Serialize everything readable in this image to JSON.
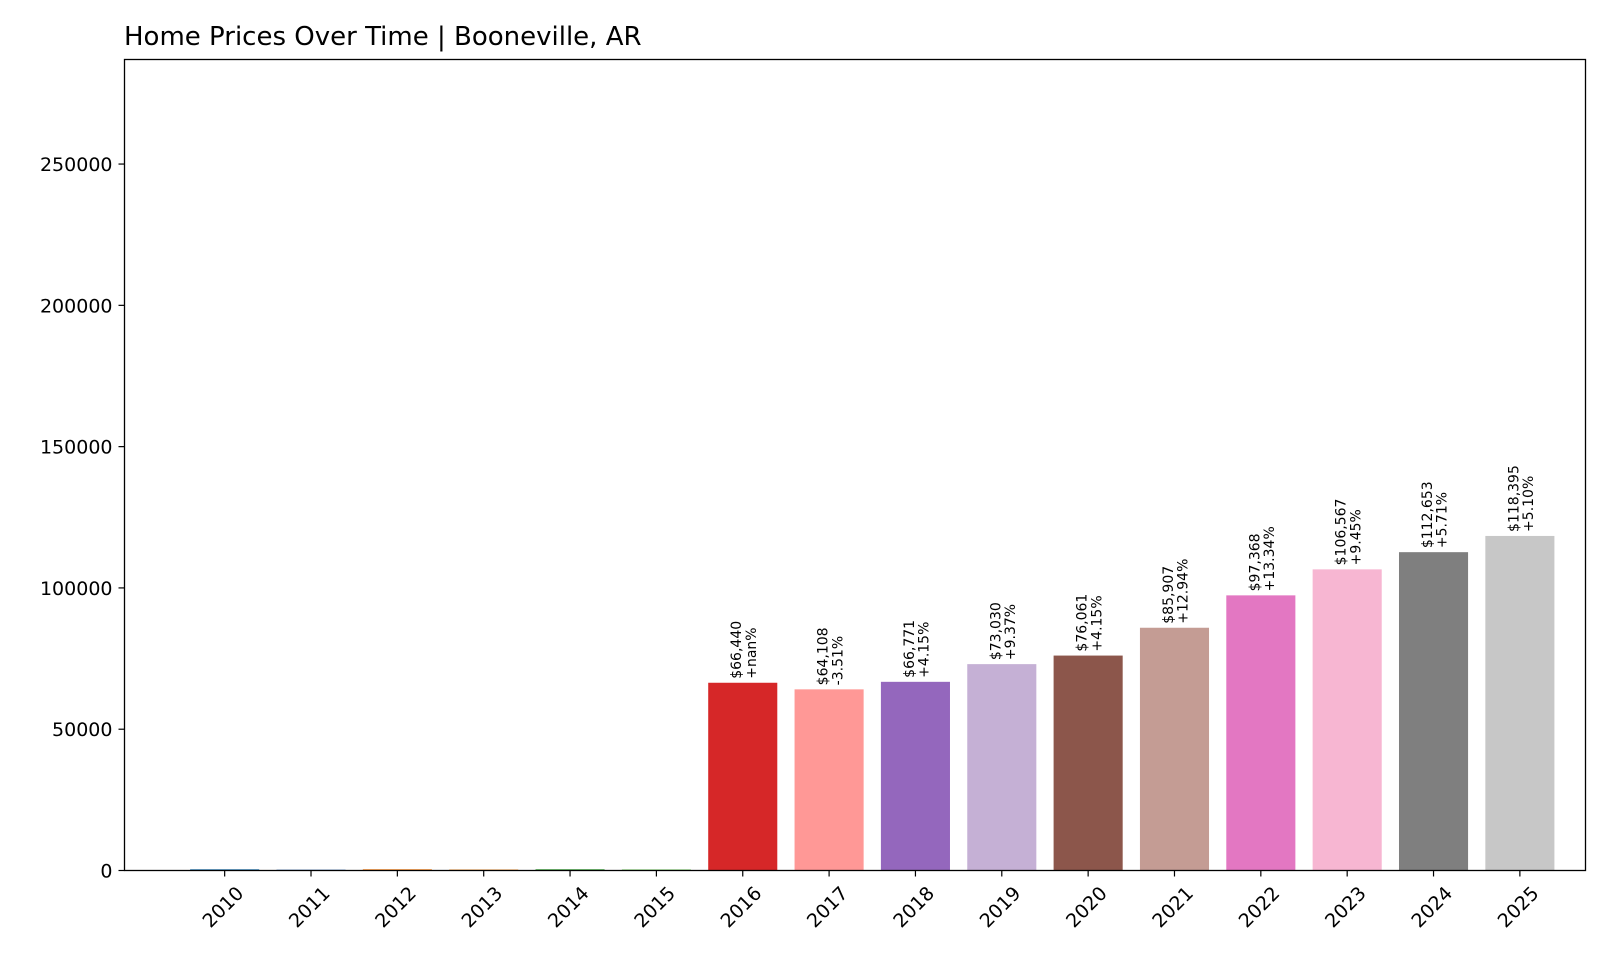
{
  "chart_data": {
    "type": "bar",
    "title": "Home Prices Over Time | Booneville, AR",
    "xlabel": "",
    "ylabel": "",
    "ylim": [
      0,
      287000
    ],
    "yticks": [
      0,
      50000,
      100000,
      150000,
      200000,
      250000
    ],
    "ytick_labels": [
      "0",
      "50000",
      "100000",
      "150000",
      "200000",
      "250000"
    ],
    "categories": [
      "2010",
      "2011",
      "2012",
      "2013",
      "2014",
      "2015",
      "2016",
      "2017",
      "2018",
      "2019",
      "2020",
      "2021",
      "2022",
      "2023",
      "2024",
      "2025"
    ],
    "values": [
      0,
      0,
      0,
      0,
      0,
      0,
      66440,
      64108,
      66771,
      73030,
      76061,
      85907,
      97368,
      106567,
      112653,
      118395
    ],
    "value_labels": [
      "",
      "",
      "",
      "",
      "",
      "",
      "$66,440",
      "$64,108",
      "$66,771",
      "$73,030",
      "$76,061",
      "$85,907",
      "$97,368",
      "$106,567",
      "$112,653",
      "$118,395"
    ],
    "change_labels": [
      "",
      "",
      "",
      "",
      "",
      "",
      "+nan%",
      "-3.51%",
      "+4.15%",
      "+9.37%",
      "+4.15%",
      "+12.94%",
      "+13.34%",
      "+9.45%",
      "+5.71%",
      "+5.10%"
    ],
    "colors": [
      "#1f77b4",
      "#aec7e8",
      "#ff7f0e",
      "#ffbb78",
      "#2ca02c",
      "#98df8a",
      "#d62728",
      "#ff9896",
      "#9467bd",
      "#c5b0d5",
      "#8c564b",
      "#c49c94",
      "#e377c2",
      "#f7b6d2",
      "#7f7f7f",
      "#c7c7c7"
    ],
    "grid": false,
    "legend": "none"
  }
}
